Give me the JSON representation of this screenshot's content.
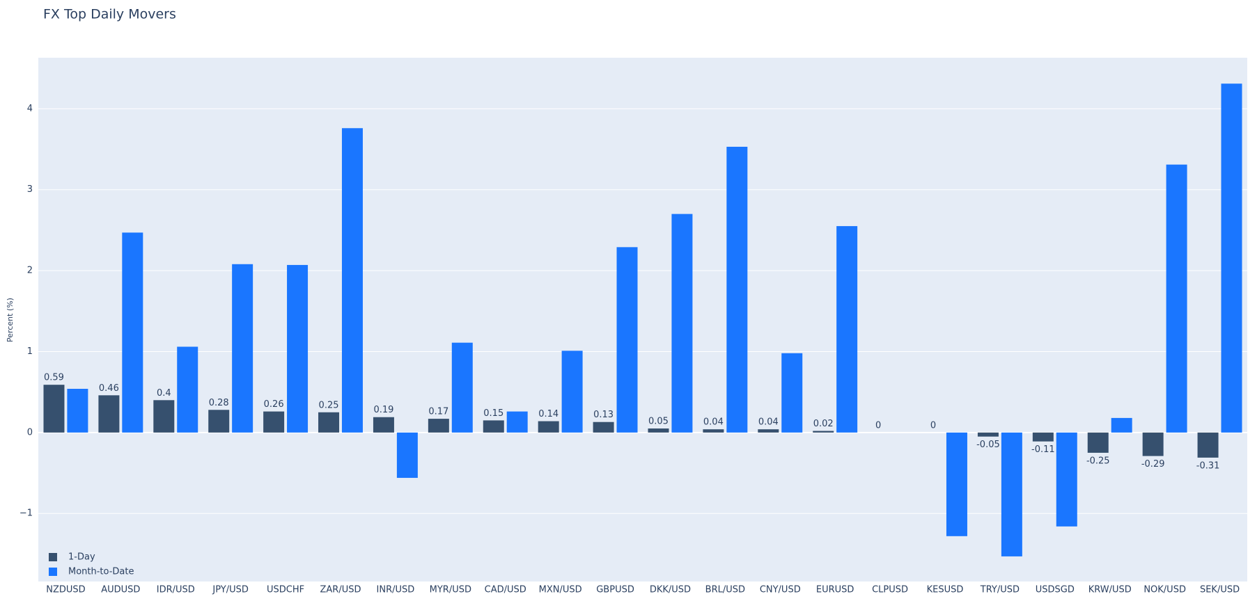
{
  "chart_data": {
    "type": "bar",
    "title": "FX Top Daily Movers",
    "y_label": "Percent (%)",
    "categories": [
      "NZDUSD",
      "AUDUSD",
      "IDR/USD",
      "JPY/USD",
      "USDCHF",
      "ZAR/USD",
      "INR/USD",
      "MYR/USD",
      "CAD/USD",
      "MXN/USD",
      "GBPUSD",
      "DKK/USD",
      "BRL/USD",
      "CNY/USD",
      "EURUSD",
      "CLPUSD",
      "KESUSD",
      "TRY/USD",
      "USDSGD",
      "KRW/USD",
      "NOK/USD",
      "SEK/USD"
    ],
    "series": [
      {
        "name": "1-Day",
        "color": "#36506e",
        "values": [
          0.59,
          0.46,
          0.4,
          0.28,
          0.26,
          0.25,
          0.19,
          0.17,
          0.15,
          0.14,
          0.13,
          0.05,
          0.04,
          0.04,
          0.02,
          0,
          0,
          -0.05,
          -0.11,
          -0.25,
          -0.29,
          -0.31
        ]
      },
      {
        "name": "Month-to-Date",
        "color": "#1a76ff",
        "values": [
          0.54,
          2.47,
          1.06,
          2.08,
          2.07,
          3.76,
          -0.56,
          1.11,
          0.26,
          1.01,
          2.29,
          2.7,
          3.53,
          0.98,
          2.55,
          0,
          -1.28,
          -1.53,
          -1.16,
          0.18,
          3.31,
          4.31
        ]
      }
    ],
    "ylim": [
      -1.84,
      4.63
    ],
    "yticks": [
      {
        "value": -1,
        "label": "−1"
      },
      0,
      1,
      2,
      3,
      4
    ],
    "grid": true,
    "legend": "bottom-left"
  }
}
